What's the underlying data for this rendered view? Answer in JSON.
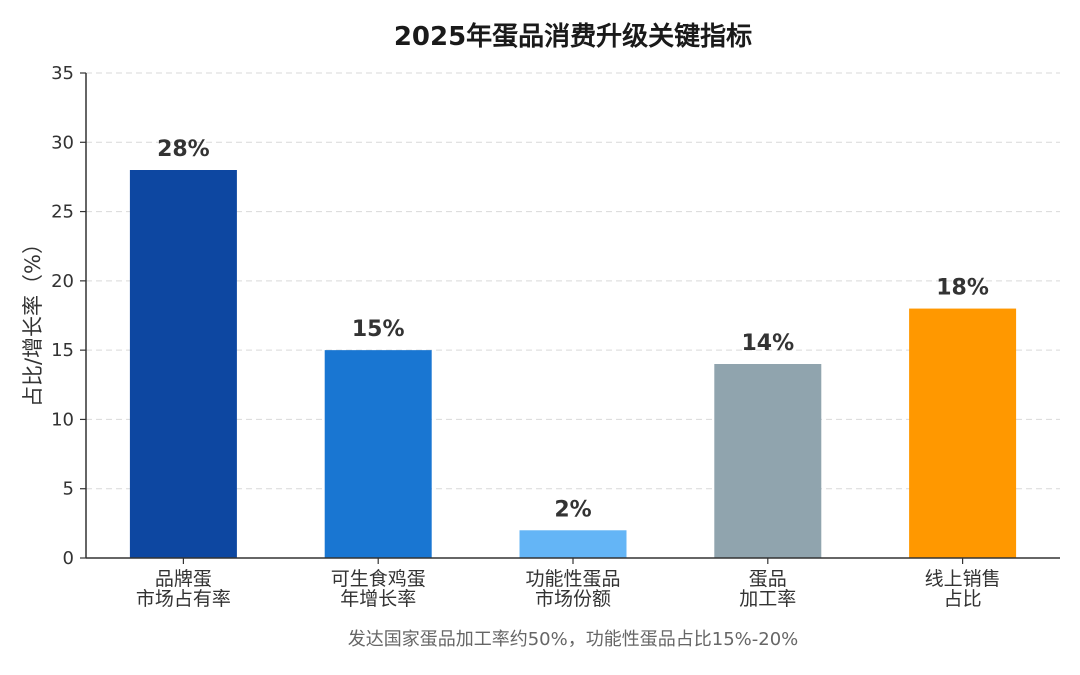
{
  "chart_data": {
    "type": "bar",
    "title": "2025年蛋品消费升级关键指标",
    "ylabel": "占比/增长率（%）",
    "xlabel": "",
    "ylim": [
      0,
      35
    ],
    "yticks": [
      0,
      5,
      10,
      15,
      20,
      25,
      30,
      35
    ],
    "grid": true,
    "categories": [
      [
        "品牌蛋",
        "市场占有率"
      ],
      [
        "可生食鸡蛋",
        "年增长率"
      ],
      [
        "功能性蛋品",
        "市场份额"
      ],
      [
        "蛋品",
        "加工率"
      ],
      [
        "线上销售",
        "占比"
      ]
    ],
    "values": [
      28,
      15,
      2,
      14,
      18
    ],
    "data_labels": [
      "28%",
      "15%",
      "2%",
      "14%",
      "18%"
    ],
    "colors": [
      "#0d47a1",
      "#1976d2",
      "#64b5f6",
      "#90a4ae",
      "#ff9800"
    ],
    "footnote": "发达国家蛋品加工率约50%，功能性蛋品占比15%-20%"
  }
}
